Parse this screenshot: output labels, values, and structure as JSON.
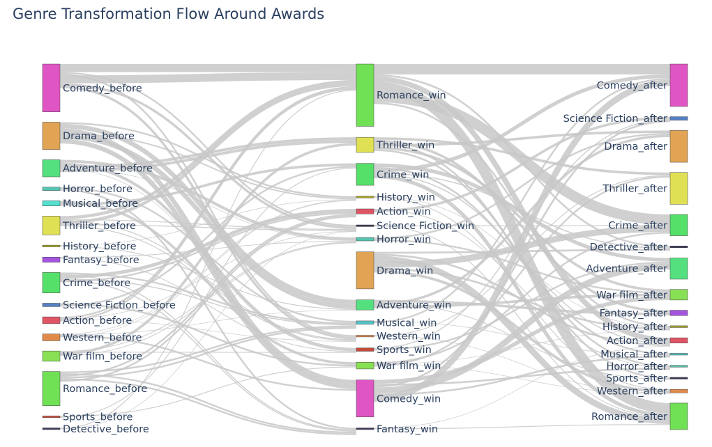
{
  "chart_data": {
    "type": "sankey",
    "title": "Genre Transformation Flow Around Awards",
    "link_color": "#c8c8c8",
    "columns": [
      {
        "stage": "before",
        "nodes": [
          {
            "label": "Comedy_before",
            "value": 28,
            "color": "#e055c4"
          },
          {
            "label": "Drama_before",
            "value": 16,
            "color": "#e0a454"
          },
          {
            "label": "Adventure_before",
            "value": 10,
            "color": "#55e080"
          },
          {
            "label": "Horror_before",
            "value": 2,
            "color": "#55c4b0"
          },
          {
            "label": "Musical_before",
            "value": 3,
            "color": "#55e0d0"
          },
          {
            "label": "Thriller_before",
            "value": 11,
            "color": "#e0e055"
          },
          {
            "label": "History_before",
            "value": 1,
            "color": "#a4a420"
          },
          {
            "label": "Fantasy_before",
            "value": 3,
            "color": "#a455e0"
          },
          {
            "label": "Crime_before",
            "value": 12,
            "color": "#55e06a"
          },
          {
            "label": "Science Fiction_before",
            "value": 2,
            "color": "#5580c4"
          },
          {
            "label": "Action_before",
            "value": 4,
            "color": "#e05566"
          },
          {
            "label": "Western_before",
            "value": 4,
            "color": "#e08a4a"
          },
          {
            "label": "War film_before",
            "value": 6,
            "color": "#88e055"
          },
          {
            "label": "Romance_before",
            "value": 20,
            "color": "#70e055"
          },
          {
            "label": "Sports_before",
            "value": 1,
            "color": "#c44a3a"
          },
          {
            "label": "Detective_before",
            "value": 1,
            "color": "#3a3a5a"
          }
        ]
      },
      {
        "stage": "win",
        "nodes": [
          {
            "label": "Romance_win",
            "value": 37,
            "color": "#70e055"
          },
          {
            "label": "Thriller_win",
            "value": 9,
            "color": "#e0e055"
          },
          {
            "label": "Crime_win",
            "value": 13,
            "color": "#55e06a"
          },
          {
            "label": "History_win",
            "value": 1,
            "color": "#a4a420"
          },
          {
            "label": "Action_win",
            "value": 3,
            "color": "#e05566"
          },
          {
            "label": "Science Fiction_win",
            "value": 1,
            "color": "#3a3a5a"
          },
          {
            "label": "Horror_win",
            "value": 2,
            "color": "#55c4b0"
          },
          {
            "label": "Drama_win",
            "value": 22,
            "color": "#e0a454"
          },
          {
            "label": "Adventure_win",
            "value": 6,
            "color": "#55e080"
          },
          {
            "label": "Musical_win",
            "value": 2,
            "color": "#55c4c4"
          },
          {
            "label": "Western_win",
            "value": 1,
            "color": "#e08a4a"
          },
          {
            "label": "Sports_win",
            "value": 2,
            "color": "#c44a3a"
          },
          {
            "label": "War film_win",
            "value": 4,
            "color": "#88e055"
          },
          {
            "label": "Comedy_win",
            "value": 22,
            "color": "#e055c4"
          },
          {
            "label": "Fantasy_win",
            "value": 1,
            "color": "#3a3a5a"
          }
        ]
      },
      {
        "stage": "after",
        "nodes": [
          {
            "label": "Comedy_after",
            "value": 24,
            "color": "#e055c4"
          },
          {
            "label": "Science Fiction_after",
            "value": 2,
            "color": "#5580c4"
          },
          {
            "label": "Drama_after",
            "value": 18,
            "color": "#e0a454"
          },
          {
            "label": "Thriller_after",
            "value": 18,
            "color": "#e0e055"
          },
          {
            "label": "Crime_after",
            "value": 12,
            "color": "#55e06a"
          },
          {
            "label": "Detective_after",
            "value": 1,
            "color": "#3a3a5a"
          },
          {
            "label": "Adventure_after",
            "value": 12,
            "color": "#55e080"
          },
          {
            "label": "War film_after",
            "value": 6,
            "color": "#88e055"
          },
          {
            "label": "Fantasy_after",
            "value": 3,
            "color": "#a455e0"
          },
          {
            "label": "History_after",
            "value": 1,
            "color": "#a4a420"
          },
          {
            "label": "Action_after",
            "value": 3,
            "color": "#e05566"
          },
          {
            "label": "Musical_after",
            "value": 1,
            "color": "#55c4c4"
          },
          {
            "label": "Horror_after",
            "value": 1,
            "color": "#55c4b0"
          },
          {
            "label": "Sports_after",
            "value": 1,
            "color": "#3a3a5a"
          },
          {
            "label": "Western_after",
            "value": 2,
            "color": "#e08a4a"
          },
          {
            "label": "Romance_after",
            "value": 15,
            "color": "#70e055"
          }
        ]
      }
    ]
  }
}
